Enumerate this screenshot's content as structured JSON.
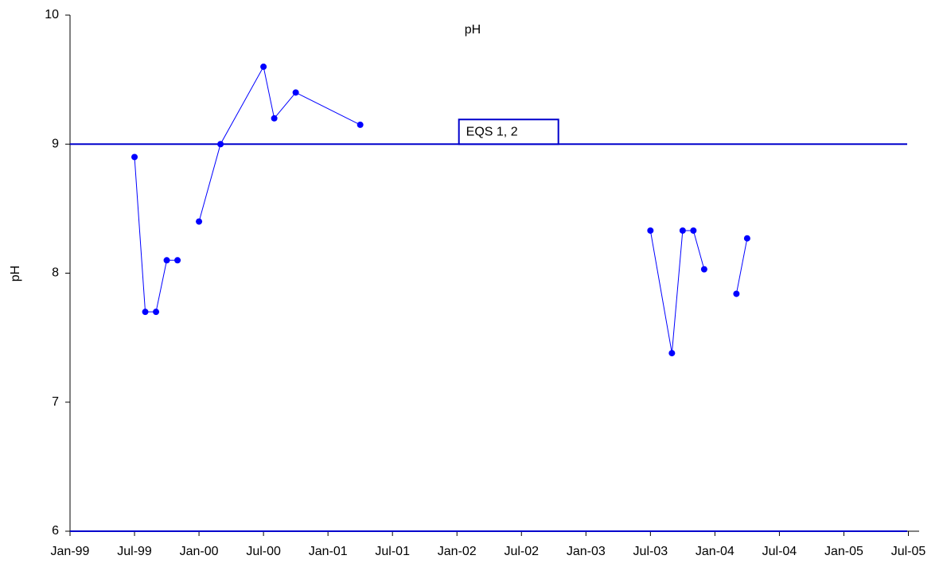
{
  "chart_data": {
    "type": "line",
    "title": "pH",
    "y_label": "pH",
    "xlim": [
      "1999-01",
      "2005-08"
    ],
    "xticks": [
      {
        "value": "1999-01",
        "label": "Jan-99"
      },
      {
        "value": "1999-07",
        "label": "Jul-99"
      },
      {
        "value": "2000-01",
        "label": "Jan-00"
      },
      {
        "value": "2000-07",
        "label": "Jul-00"
      },
      {
        "value": "2001-01",
        "label": "Jan-01"
      },
      {
        "value": "2001-07",
        "label": "Jul-01"
      },
      {
        "value": "2002-01",
        "label": "Jan-02"
      },
      {
        "value": "2002-07",
        "label": "Jul-02"
      },
      {
        "value": "2003-01",
        "label": "Jan-03"
      },
      {
        "value": "2003-07",
        "label": "Jul-03"
      },
      {
        "value": "2004-01",
        "label": "Jan-04"
      },
      {
        "value": "2004-07",
        "label": "Jul-04"
      },
      {
        "value": "2005-01",
        "label": "Jan-05"
      },
      {
        "value": "2005-07",
        "label": "Jul-05"
      }
    ],
    "ylim": [
      6,
      10
    ],
    "yticks": [
      6,
      7,
      8,
      9,
      10
    ],
    "series": [
      {
        "color": "#0000ff",
        "x": [
          "1999-07",
          "1999-08",
          "1999-09",
          "1999-10",
          "1999-11"
        ],
        "values": [
          8.9,
          7.7,
          7.7,
          8.1,
          8.1
        ]
      },
      {
        "color": "#0000ff",
        "x": [
          "2000-01",
          "2000-03",
          "2000-07",
          "2000-08",
          "2000-10",
          "2001-04"
        ],
        "values": [
          8.4,
          9.0,
          9.6,
          9.2,
          9.4,
          9.15
        ]
      },
      {
        "color": "#0000ff",
        "x": [
          "2003-07",
          "2003-09",
          "2003-10",
          "2003-11",
          "2003-12"
        ],
        "values": [
          8.33,
          7.38,
          8.33,
          8.33,
          8.03
        ]
      },
      {
        "color": "#0000ff",
        "x": [
          "2004-03",
          "2004-04"
        ],
        "values": [
          7.84,
          8.27
        ]
      }
    ],
    "reference_lines": [
      {
        "value": 9,
        "label": "EQS 1, 2",
        "color": "#0000cc"
      },
      {
        "value": 6,
        "color": "#0000cc"
      }
    ]
  }
}
